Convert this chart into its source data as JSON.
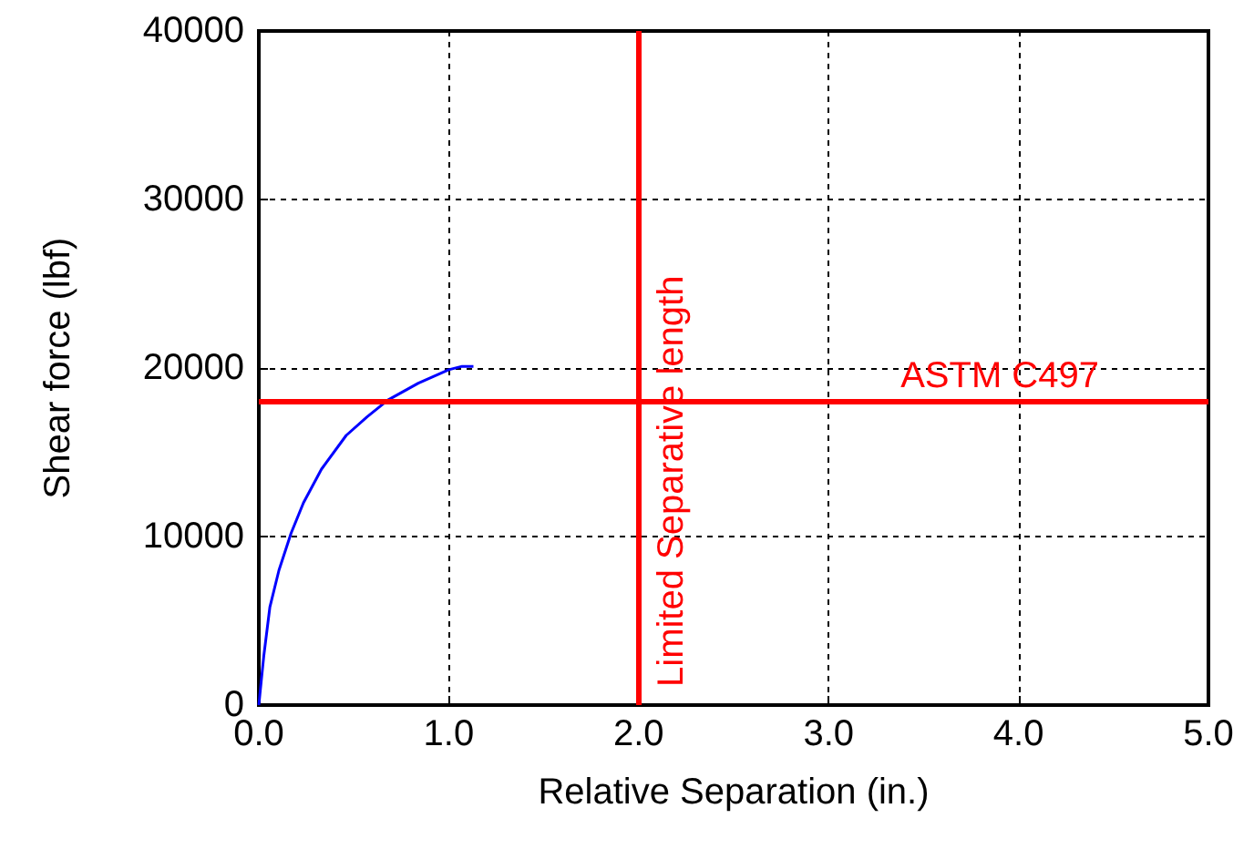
{
  "chart_data": {
    "type": "line",
    "xlabel": "Relative Separation (in.)",
    "ylabel": "Shear force (lbf)",
    "series": [
      {
        "color": "#0000ff",
        "x": [
          0,
          0.026,
          0.058,
          0.106,
          0.17,
          0.235,
          0.33,
          0.46,
          0.57,
          0.68,
          0.84,
          1.0,
          1.07,
          1.13
        ],
        "values": [
          0,
          2900,
          5800,
          8000,
          10200,
          12000,
          14000,
          16000,
          17100,
          18100,
          19100,
          19900,
          20100,
          20100
        ]
      }
    ],
    "xlim": [
      0,
      5
    ],
    "xticks": [
      {
        "value": 0,
        "label": "0.0"
      },
      {
        "value": 1,
        "label": "1.0"
      },
      {
        "value": 2,
        "label": "2.0"
      },
      {
        "value": 3,
        "label": "3.0"
      },
      {
        "value": 4,
        "label": "4.0"
      },
      {
        "value": 5,
        "label": "5.0"
      }
    ],
    "ylim": [
      0,
      40000
    ],
    "yticks": [
      0,
      10000,
      20000,
      30000,
      40000
    ],
    "ref_lines": [
      {
        "axis": "x",
        "value": 2,
        "label": "Limited Separative length",
        "color": "#ff0000"
      },
      {
        "axis": "y",
        "value": 18000,
        "label": "ASTM C497",
        "color": "#ff0000"
      }
    ],
    "grid": true,
    "line_style": "solid",
    "marker": "none"
  }
}
